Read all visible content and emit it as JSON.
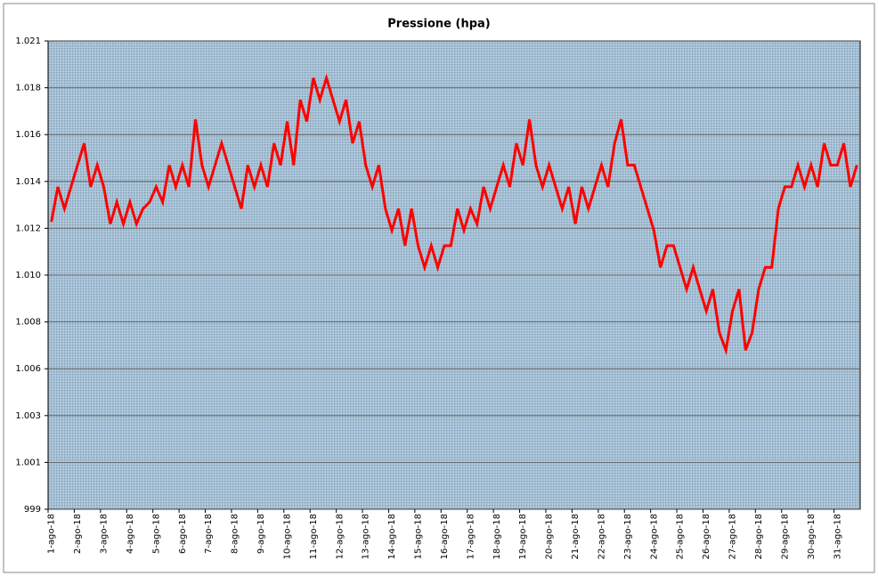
{
  "chart_data": {
    "type": "line",
    "title": "Pressione (hpa)",
    "categories": [
      "1-ago-18",
      null,
      null,
      null,
      "2-ago-18",
      null,
      null,
      null,
      "3-ago-18",
      null,
      null,
      null,
      "4-ago-18",
      null,
      null,
      null,
      "5-ago-18",
      null,
      null,
      null,
      "6-ago-18",
      null,
      null,
      null,
      "7-ago-18",
      null,
      null,
      null,
      "8-ago-18",
      null,
      null,
      null,
      "9-ago-18",
      null,
      null,
      null,
      "10-ago-18",
      null,
      null,
      null,
      "11-ago-18",
      null,
      null,
      null,
      "12-ago-18",
      null,
      null,
      null,
      "13-ago-18",
      null,
      null,
      null,
      "14-ago-18",
      null,
      null,
      null,
      "15-ago-18",
      null,
      null,
      null,
      "16-ago-18",
      null,
      null,
      null,
      "17-ago-18",
      null,
      null,
      null,
      "18-ago-18",
      null,
      null,
      null,
      "19-ago-18",
      null,
      null,
      null,
      "20-ago-18",
      null,
      null,
      null,
      "21-ago-18",
      null,
      null,
      null,
      "22-ago-18",
      null,
      null,
      null,
      "23-ago-18",
      null,
      null,
      null,
      "24-ago-18",
      null,
      null,
      null,
      "25-ago-18",
      null,
      null,
      null,
      "26-ago-18",
      null,
      null,
      null,
      "27-ago-18",
      null,
      null,
      null,
      "28-ago-18",
      null,
      null,
      null,
      "29-ago-18",
      null,
      null,
      null,
      "30-ago-18",
      null,
      null,
      null,
      "31-ago-18",
      null,
      null,
      null
    ],
    "values": [
      1012.3,
      1013.9,
      1012.9,
      1013.9,
      1014.9,
      1015.9,
      1013.9,
      1014.9,
      1013.9,
      1012.2,
      1013.2,
      1012.2,
      1013.2,
      1012.2,
      1012.9,
      1013.2,
      1013.9,
      1013.2,
      1014.9,
      1013.9,
      1014.9,
      1013.9,
      1017.0,
      1014.9,
      1013.9,
      1014.9,
      1015.9,
      1014.9,
      1013.9,
      1012.9,
      1014.9,
      1013.9,
      1014.9,
      1013.9,
      1015.9,
      1014.9,
      1016.9,
      1014.9,
      1017.9,
      1016.9,
      1018.9,
      1017.9,
      1018.9,
      1017.9,
      1016.9,
      1017.9,
      1015.9,
      1016.9,
      1014.9,
      1013.9,
      1014.9,
      1012.9,
      1011.9,
      1012.9,
      1011.2,
      1012.9,
      1011.2,
      1010.2,
      1011.2,
      1010.2,
      1011.2,
      1011.2,
      1012.9,
      1011.9,
      1012.9,
      1012.2,
      1013.9,
      1012.9,
      1013.9,
      1014.9,
      1013.9,
      1015.9,
      1014.9,
      1017.0,
      1014.9,
      1013.9,
      1014.9,
      1013.9,
      1012.9,
      1013.9,
      1012.2,
      1013.9,
      1012.9,
      1013.9,
      1014.9,
      1013.9,
      1015.9,
      1017.0,
      1014.9,
      1014.9,
      1013.9,
      1012.9,
      1011.9,
      1010.2,
      1011.2,
      1011.2,
      1010.2,
      1009.2,
      1010.2,
      1009.2,
      1008.2,
      1009.2,
      1007.2,
      1006.4,
      1008.2,
      1009.2,
      1006.4,
      1007.2,
      1009.2,
      1010.2,
      1010.2,
      1012.9,
      1013.9,
      1013.9,
      1014.9,
      1013.9,
      1014.9,
      1013.9,
      1015.9,
      1014.9,
      1014.9,
      1015.9,
      1013.9,
      1014.9
    ],
    "color": "#ff0000",
    "ylim": [
      999.1,
      1020.6
    ],
    "yticks": [
      {
        "value": 999.1,
        "label": "999"
      },
      {
        "value": 1001.25,
        "label": "1.001"
      },
      {
        "value": 1003.4,
        "label": "1.003"
      },
      {
        "value": 1005.55,
        "label": "1.006"
      },
      {
        "value": 1007.7,
        "label": "1.008"
      },
      {
        "value": 1009.85,
        "label": "1.010"
      },
      {
        "value": 1012,
        "label": "1.012"
      },
      {
        "value": 1014.15,
        "label": "1.014"
      },
      {
        "value": 1016.3,
        "label": "1.016"
      },
      {
        "value": 1018.45,
        "label": "1.018"
      },
      {
        "value": 1020.6,
        "label": "1.021"
      }
    ],
    "grid": true
  }
}
